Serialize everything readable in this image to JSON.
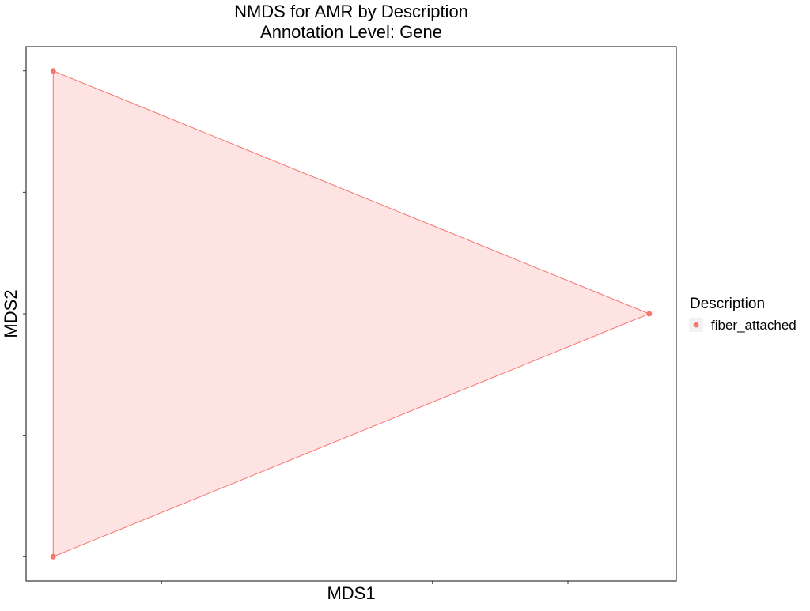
{
  "chart_data": {
    "type": "scatter",
    "title": "NMDS for AMR by Description",
    "subtitle": "Annotation Level: Gene",
    "xlabel": "MDS1",
    "ylabel": "MDS2",
    "xlim": [
      -0.1,
      2.3
    ],
    "ylim": [
      -0.1,
      2.1
    ],
    "x_ticks": [
      0.4,
      0.9,
      1.4,
      1.9
    ],
    "y_ticks": [
      0.0,
      0.5,
      1.0,
      1.5,
      2.0
    ],
    "tick_labels_shown": false,
    "grid": false,
    "legend": {
      "title": "Description",
      "placement": "right"
    },
    "series": [
      {
        "name": "fiber_attached",
        "color": "#F8766D",
        "fill": "#FDE3E1",
        "hull": true,
        "points": [
          {
            "x": 0.0,
            "y": 2.0
          },
          {
            "x": 2.2,
            "y": 1.0
          },
          {
            "x": 0.0,
            "y": 0.0
          }
        ]
      }
    ]
  }
}
